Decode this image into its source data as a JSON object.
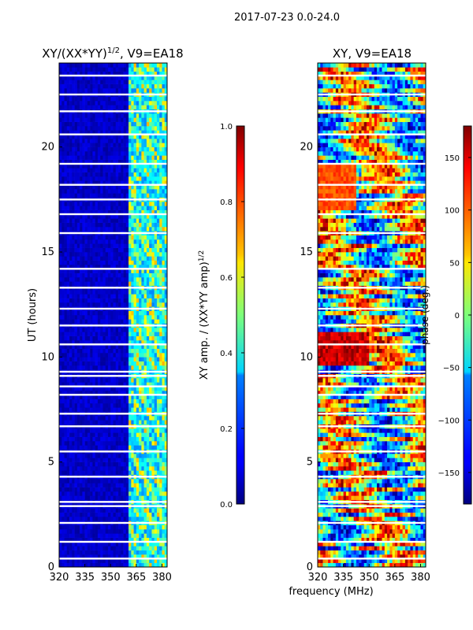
{
  "figure_title": "2017-07-23 0.0-24.0",
  "chart_data": [
    {
      "type": "heatmap",
      "title": "XY/(XX*YY)",
      "title_exponent": "1/2",
      "title_suffix": ", V9=EA18",
      "xlabel": "frequency (MHz)",
      "ylabel": "UT (hours)",
      "xlim": [
        320,
        383
      ],
      "ylim": [
        0,
        24
      ],
      "x_ticks": [
        320,
        335,
        350,
        365,
        380
      ],
      "y_ticks": [
        0,
        5,
        10,
        15,
        20
      ],
      "colorbar": {
        "label": "XY amp. / (XX*YY amp)",
        "label_exponent": "1/2",
        "range": [
          0.0,
          1.0
        ],
        "ticks": [
          "0.0",
          "0.2",
          "0.4",
          "0.6",
          "0.8",
          "1.0"
        ],
        "colormap": "jet"
      },
      "description_values": {
        "background_low_band": [
          320,
          360
        ],
        "background_value": 0.05,
        "high_band_value_range": [
          0.3,
          0.75
        ],
        "high_band": [
          360,
          382
        ]
      }
    },
    {
      "type": "heatmap",
      "title": "XY, V9=EA18",
      "xlabel": "frequency (MHz)",
      "ylabel": "",
      "xlim": [
        320,
        383
      ],
      "ylim": [
        0,
        24
      ],
      "x_ticks": [
        320,
        335,
        350,
        365,
        380
      ],
      "y_ticks": [
        0,
        5,
        10,
        15,
        20
      ],
      "colorbar": {
        "label": "phase (deg.)",
        "range": [
          -180,
          180
        ],
        "ticks": [
          "−150",
          "−100",
          "−50",
          "0",
          "50",
          "100",
          "150"
        ],
        "tick_values": [
          -150,
          -100,
          -50,
          0,
          50,
          100,
          150
        ],
        "colormap": "jet"
      }
    }
  ],
  "shared_xlabel": "frequency (MHz)"
}
